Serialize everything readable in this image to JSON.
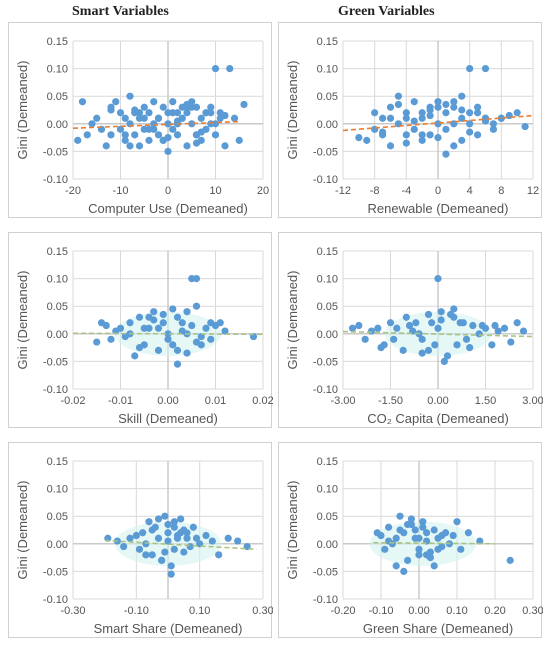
{
  "column_titles": {
    "left": "Smart Variables",
    "right": "Green Variables"
  },
  "colors": {
    "points": "#5b9bd5",
    "trend_up": "#ed7d31",
    "trend_flat": "#a9c47f",
    "grid": "#d9d9d9",
    "axis": "#bfbfbf"
  },
  "chart_data": [
    {
      "type": "scatter",
      "xlabel": "Computer Use (Demeaned)",
      "ylabel": "Gini (Demeaned)",
      "xlim": [
        -20,
        20
      ],
      "ylim": [
        -0.1,
        0.15
      ],
      "xticks": [
        "-20",
        "-10",
        "0",
        "10",
        "20"
      ],
      "yticks": [
        "-0.10",
        "-0.05",
        "0.00",
        "0.05",
        "0.10",
        "0.15"
      ],
      "trend": {
        "color": "#ed7d31",
        "x": [
          -20,
          15
        ],
        "y": [
          -0.008,
          0.004
        ]
      },
      "x": [
        -19,
        -18,
        -17,
        -16,
        -15,
        -14,
        -13,
        -12,
        -12,
        -11,
        -10,
        -10,
        -9,
        -9,
        -8,
        -8,
        -7,
        -7,
        -6,
        -6,
        -5,
        -5,
        -4,
        -4,
        -3,
        -3,
        -2,
        -2,
        -1,
        -1,
        0,
        0,
        1,
        1,
        2,
        2,
        3,
        3,
        4,
        4,
        5,
        5,
        6,
        6,
        7,
        7,
        8,
        8,
        9,
        9,
        10,
        10,
        11,
        11,
        12,
        13,
        14,
        15,
        16,
        -8,
        -6,
        -4,
        -2,
        0,
        2,
        4,
        6,
        8,
        3,
        5,
        -3,
        1,
        6,
        10,
        12,
        -12,
        -9,
        -5,
        0,
        4,
        7,
        9,
        2,
        -1,
        -7
      ],
      "y": [
        -0.03,
        0.04,
        -0.02,
        0.0,
        0.01,
        -0.01,
        -0.04,
        0.03,
        -0.02,
        0.04,
        -0.01,
        0.02,
        -0.03,
        0.01,
        0.0,
        0.05,
        -0.02,
        0.02,
        -0.04,
        0.01,
        0.03,
        -0.01,
        0.02,
        -0.03,
        0.0,
        0.04,
        -0.02,
        0.01,
        0.03,
        -0.03,
        0.0,
        0.02,
        -0.01,
        0.04,
        0.02,
        -0.02,
        0.03,
        0.01,
        -0.04,
        0.02,
        0.0,
        0.04,
        -0.02,
        0.03,
        0.01,
        -0.03,
        0.02,
        -0.01,
        0.03,
        0.0,
        0.1,
        -0.02,
        0.01,
        0.02,
        -0.04,
        0.1,
        0.01,
        -0.03,
        0.035,
        -0.04,
        0.02,
        -0.01,
        0.01,
        -0.05,
        0.0,
        0.03,
        -0.02,
        0.02,
        0.01,
        0.03,
        -0.01,
        0.02,
        -0.035,
        0.0,
        0.015,
        0.025,
        -0.02,
        0.01,
        -0.025,
        0.035,
        -0.015,
        0.02,
        0.005,
        -0.03,
        0.025
      ],
      "highlight": null
    },
    {
      "type": "scatter",
      "xlabel": "Renewable  (Demeaned)",
      "ylabel": "Gini (Demeaned)",
      "xlim": [
        -12,
        12
      ],
      "ylim": [
        -0.1,
        0.15
      ],
      "xticks": [
        "-12",
        "-8",
        "-4",
        "0",
        "4",
        "8",
        "12"
      ],
      "yticks": [
        "-0.10",
        "-0.05",
        "0.00",
        "0.05",
        "0.10",
        "0.15"
      ],
      "trend": {
        "color": "#ed7d31",
        "x": [
          -12,
          12
        ],
        "y": [
          -0.012,
          0.015
        ]
      },
      "x": [
        -10,
        -9,
        -8,
        -8,
        -7,
        -7,
        -6,
        -6,
        -5,
        -5,
        -4,
        -4,
        -3,
        -3,
        -2,
        -2,
        -1,
        -1,
        0,
        0,
        1,
        1,
        2,
        2,
        3,
        3,
        4,
        4,
        5,
        5,
        6,
        6,
        7,
        7,
        8,
        9,
        10,
        11,
        -6,
        -4,
        -2,
        0,
        2,
        4,
        -3,
        -1,
        1,
        3,
        5,
        -5,
        -7,
        4,
        6,
        0,
        2,
        -2,
        -4,
        3,
        1,
        -1,
        6,
        8
      ],
      "y": [
        -0.025,
        -0.03,
        -0.01,
        0.02,
        -0.02,
        0.01,
        -0.04,
        0.03,
        0.0,
        0.05,
        -0.02,
        0.02,
        0.04,
        -0.01,
        0.01,
        -0.03,
        0.03,
        -0.02,
        0.0,
        0.04,
        0.02,
        -0.01,
        0.03,
        -0.04,
        0.01,
        0.05,
        0.1,
        0.0,
        0.02,
        -0.02,
        0.1,
        0.01,
        0.0,
        -0.01,
        0.01,
        0.015,
        0.02,
        -0.005,
        0.01,
        -0.035,
        0.02,
        -0.025,
        0.04,
        -0.015,
        0.005,
        0.015,
        -0.055,
        0.025,
        0.03,
        0.035,
        -0.015,
        0.02,
        0.005,
        0.03,
        0.0,
        -0.02,
        0.01,
        -0.03,
        0.035,
        0.025,
        0.01,
        0.01
      ],
      "highlight": null
    },
    {
      "type": "scatter",
      "xlabel": "Skill (Demeaned)",
      "ylabel": "Gini (Demeaned)",
      "xlim": [
        -0.02,
        0.02
      ],
      "ylim": [
        -0.1,
        0.15
      ],
      "xticks": [
        "-0.02",
        "-0.01",
        "0.00",
        "0.01",
        "0.02"
      ],
      "yticks": [
        "-0.10",
        "-0.05",
        "0.00",
        "0.05",
        "0.10",
        "0.15"
      ],
      "trend": {
        "color": "#a9c47f",
        "x": [
          -0.02,
          0.02
        ],
        "y": [
          0.001,
          -0.001
        ]
      },
      "x": [
        -0.015,
        -0.014,
        -0.013,
        -0.012,
        -0.011,
        -0.01,
        -0.009,
        -0.008,
        -0.007,
        -0.006,
        -0.005,
        -0.004,
        -0.003,
        -0.002,
        -0.001,
        0.0,
        0.001,
        0.002,
        0.003,
        0.004,
        0.005,
        0.006,
        0.007,
        0.008,
        0.009,
        0.01,
        0.011,
        0.012,
        0.018,
        -0.008,
        -0.006,
        -0.004,
        -0.002,
        0.0,
        0.002,
        0.004,
        0.006,
        0.005,
        0.006,
        -0.003,
        0.001,
        0.003,
        -0.005,
        0.007,
        0.009,
        0.002,
        -0.001,
        0.004
      ],
      "y": [
        -0.015,
        0.02,
        0.015,
        -0.01,
        0.005,
        0.01,
        -0.005,
        0.02,
        -0.04,
        0.03,
        -0.02,
        0.01,
        0.04,
        -0.03,
        0.02,
        0.0,
        0.045,
        -0.03,
        0.02,
        0.04,
        0.1,
        0.05,
        -0.02,
        0.01,
        -0.01,
        0.015,
        0.02,
        0.005,
        -0.005,
        0.0,
        -0.025,
        0.03,
        0.01,
        -0.01,
        0.03,
        -0.035,
        -0.015,
        0.015,
        0.1,
        0.025,
        -0.02,
        0.005,
        0.01,
        -0.005,
        0.02,
        -0.055,
        0.035,
        0.0
      ],
      "highlight": "#cff2ee"
    },
    {
      "type": "scatter",
      "xlabel": "CO₂ Capita (Demeaned)",
      "ylabel": "Gini (Demeaned)",
      "xlim": [
        -3,
        3
      ],
      "ylim": [
        -0.1,
        0.15
      ],
      "xticks": [
        "-3.00",
        "-1.50",
        "0.00",
        "1.50",
        "3.00"
      ],
      "yticks": [
        "-0.10",
        "-0.05",
        "0.00",
        "0.05",
        "0.10",
        "0.15"
      ],
      "trend": {
        "color": "#a9c47f",
        "x": [
          -3,
          3
        ],
        "y": [
          0.004,
          -0.005
        ]
      },
      "x": [
        -2.7,
        -2.5,
        -2.3,
        -2.1,
        -1.9,
        -1.7,
        -1.5,
        -1.3,
        -1.1,
        -0.9,
        -0.7,
        -0.5,
        -0.3,
        -0.1,
        0.1,
        0.3,
        0.5,
        0.7,
        0.9,
        1.1,
        1.3,
        1.5,
        1.7,
        1.9,
        2.1,
        2.3,
        2.5,
        2.7,
        -1.0,
        -0.5,
        0.0,
        0.5,
        1.0,
        -0.2,
        0.2,
        -0.8,
        0.8,
        -1.4,
        1.4,
        0.1,
        -0.3,
        0.4,
        -0.6,
        0.6,
        0.0,
        1.8,
        -1.8
      ],
      "y": [
        0.01,
        0.015,
        -0.01,
        0.005,
        0.01,
        -0.02,
        0.02,
        0.01,
        -0.03,
        0.015,
        0.02,
        -0.01,
        0.035,
        -0.02,
        0.04,
        -0.04,
        0.03,
        0.02,
        -0.01,
        0.015,
        0.0,
        0.01,
        -0.02,
        0.005,
        0.01,
        -0.015,
        0.02,
        0.005,
        0.03,
        -0.035,
        0.1,
        0.045,
        -0.025,
        0.02,
        -0.05,
        0.005,
        0.02,
        -0.01,
        0.015,
        0.025,
        -0.03,
        0.035,
        0.0,
        -0.02,
        0.01,
        0.015,
        -0.025
      ],
      "highlight": "#cff2ee"
    },
    {
      "type": "scatter",
      "xlabel": "Smart Share (Demeaned)",
      "ylabel": "Gini (Demeaned)",
      "xlim": [
        -0.3,
        0.3
      ],
      "ylim": [
        -0.1,
        0.15
      ],
      "xticks": [
        "-0.30",
        "-0.10",
        "0.10",
        "0.30"
      ],
      "yticks": [
        "-0.10",
        "-0.05",
        "0.00",
        "0.05",
        "0.10",
        "0.15"
      ],
      "trend": {
        "color": "#a9c47f",
        "x": [
          -0.2,
          0.28
        ],
        "y": [
          0.006,
          -0.01
        ]
      },
      "x": [
        -0.19,
        -0.16,
        -0.14,
        -0.12,
        -0.1,
        -0.09,
        -0.08,
        -0.07,
        -0.06,
        -0.05,
        -0.04,
        -0.03,
        -0.02,
        -0.01,
        0.0,
        0.01,
        0.02,
        0.03,
        0.04,
        0.05,
        0.06,
        0.07,
        0.08,
        0.09,
        0.1,
        0.12,
        0.14,
        0.16,
        0.19,
        0.22,
        0.25,
        -0.05,
        -0.02,
        0.0,
        0.02,
        0.04,
        -0.03,
        0.01,
        0.03,
        0.06,
        -0.07,
        0.05,
        0.0,
        -0.01,
        0.02
      ],
      "y": [
        0.01,
        0.005,
        -0.005,
        0.01,
        0.015,
        -0.01,
        0.02,
        0.0,
        0.04,
        -0.02,
        0.03,
        0.01,
        -0.03,
        0.05,
        0.02,
        -0.04,
        0.03,
        0.01,
        0.045,
        -0.015,
        0.02,
        -0.005,
        0.03,
        0.01,
        0.0,
        0.015,
        0.005,
        -0.02,
        0.01,
        0.005,
        -0.005,
        0.025,
        -0.03,
        0.035,
        -0.01,
        0.02,
        0.045,
        -0.055,
        0.015,
        0.01,
        -0.02,
        0.025,
        0.005,
        -0.015,
        0.04
      ],
      "highlight": "#cff2ee"
    },
    {
      "type": "scatter",
      "xlabel": "Green Share (Demeaned)",
      "ylabel": "Gini (Demeaned)",
      "xlim": [
        -0.2,
        0.3
      ],
      "ylim": [
        -0.1,
        0.15
      ],
      "xticks": [
        "-0.20",
        "-0.10",
        "0.00",
        "0.10",
        "0.20",
        "0.30"
      ],
      "yticks": [
        "-0.10",
        "-0.05",
        "0.00",
        "0.05",
        "0.10",
        "0.15"
      ],
      "trend": {
        "color": "#a9c47f",
        "x": [
          -0.12,
          0.2
        ],
        "y": [
          0.002,
          0.0
        ]
      },
      "x": [
        -0.11,
        -0.1,
        -0.09,
        -0.08,
        -0.07,
        -0.06,
        -0.05,
        -0.04,
        -0.03,
        -0.02,
        -0.01,
        0.0,
        0.01,
        0.02,
        0.03,
        0.04,
        0.05,
        0.06,
        0.07,
        0.08,
        0.09,
        0.1,
        0.11,
        0.13,
        0.16,
        0.24,
        -0.06,
        -0.04,
        -0.02,
        0.0,
        0.02,
        0.04,
        -0.05,
        0.01,
        0.03,
        -0.08,
        0.06,
        -0.01,
        0.02,
        0.0,
        -0.03,
        0.05
      ],
      "y": [
        0.02,
        0.015,
        -0.01,
        0.03,
        0.0,
        -0.04,
        0.05,
        0.02,
        -0.03,
        0.045,
        0.01,
        -0.02,
        0.03,
        0.02,
        -0.015,
        0.025,
        0.01,
        -0.005,
        0.02,
        0.0,
        0.015,
        0.04,
        -0.01,
        0.02,
        0.005,
        -0.03,
        0.01,
        -0.05,
        0.035,
        -0.01,
        0.005,
        -0.04,
        0.025,
        0.04,
        -0.025,
        0.005,
        0.015,
        0.025,
        -0.02,
        0.01,
        0.035,
        -0.01
      ],
      "highlight": "#cff2ee"
    }
  ]
}
